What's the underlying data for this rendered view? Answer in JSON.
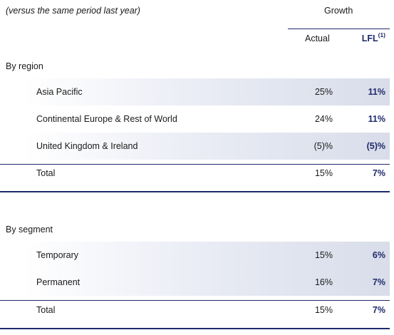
{
  "header": {
    "note": "(versus the same period last year)",
    "growth_label": "Growth",
    "actual_label": "Actual",
    "lfl_label": "LFL",
    "lfl_footnote": "(1)"
  },
  "region": {
    "title": "By region",
    "rows": [
      {
        "label": "Asia Pacific",
        "actual": "25%",
        "lfl": "11%"
      },
      {
        "label": "Continental Europe & Rest of World",
        "actual": "24%",
        "lfl": "11%"
      },
      {
        "label": "United Kingdom & Ireland",
        "actual": "(5)%",
        "lfl": "(5)%"
      }
    ],
    "total": {
      "label": "Total",
      "actual": "15%",
      "lfl": "7%"
    }
  },
  "segment": {
    "title": "By segment",
    "rows": [
      {
        "label": "Temporary",
        "actual": "15%",
        "lfl": "6%"
      },
      {
        "label": "Permanent",
        "actual": "16%",
        "lfl": "7%"
      }
    ],
    "total": {
      "label": "Total",
      "actual": "15%",
      "lfl": "7%"
    }
  },
  "colors": {
    "accent": "#1f2a6b",
    "band": "#e8ebf4"
  }
}
